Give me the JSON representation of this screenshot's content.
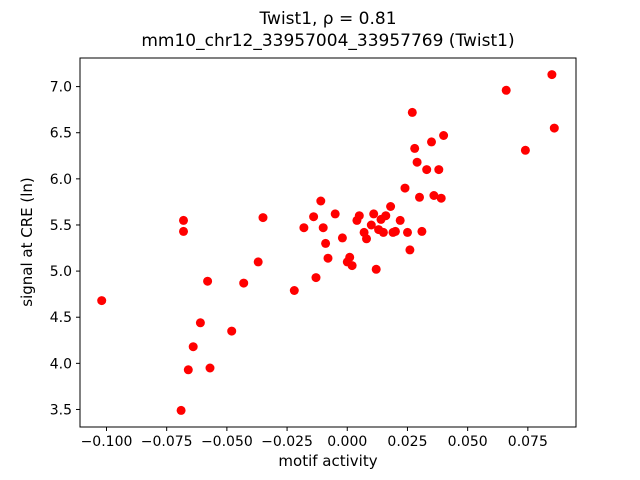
{
  "figure": {
    "background": "#ffffff",
    "frame_color": "#000000",
    "text_color": "#000000"
  },
  "chart_data": {
    "type": "scatter",
    "title": "Twist1, ρ = 0.81",
    "subtitle": "mm10_chr12_33957004_33957769 (Twist1)",
    "xlabel": "motif activity",
    "ylabel": "signal at CRE (ln)",
    "legend": "none",
    "grid": false,
    "marker_color": "#ff0000",
    "marker_radius": 4.5,
    "xlim": [
      -0.111,
      0.095
    ],
    "ylim": [
      3.31,
      7.31
    ],
    "x_tick_values": [
      -0.1,
      -0.075,
      -0.05,
      -0.025,
      0.0,
      0.025,
      0.05,
      0.075
    ],
    "x_tick_labels": [
      "−0.100",
      "−0.075",
      "−0.050",
      "−0.025",
      "0.000",
      "0.025",
      "0.050",
      "0.075"
    ],
    "y_tick_values": [
      3.5,
      4.0,
      4.5,
      5.0,
      5.5,
      6.0,
      6.5,
      7.0
    ],
    "y_tick_labels": [
      "3.5",
      "4.0",
      "4.5",
      "5.0",
      "5.5",
      "6.0",
      "6.5",
      "7.0"
    ],
    "points": [
      [
        -0.102,
        4.68
      ],
      [
        -0.068,
        5.55
      ],
      [
        -0.068,
        5.43
      ],
      [
        -0.069,
        3.49
      ],
      [
        -0.066,
        3.93
      ],
      [
        -0.064,
        4.18
      ],
      [
        -0.061,
        4.44
      ],
      [
        -0.058,
        4.89
      ],
      [
        -0.057,
        3.95
      ],
      [
        -0.048,
        4.35
      ],
      [
        -0.043,
        4.87
      ],
      [
        -0.037,
        5.1
      ],
      [
        -0.035,
        5.58
      ],
      [
        -0.022,
        4.79
      ],
      [
        -0.018,
        5.47
      ],
      [
        -0.014,
        5.59
      ],
      [
        -0.013,
        4.93
      ],
      [
        -0.011,
        5.76
      ],
      [
        -0.01,
        5.47
      ],
      [
        -0.009,
        5.3
      ],
      [
        -0.008,
        5.14
      ],
      [
        -0.005,
        5.62
      ],
      [
        -0.002,
        5.36
      ],
      [
        0.0,
        5.1
      ],
      [
        0.001,
        5.15
      ],
      [
        0.002,
        5.06
      ],
      [
        0.004,
        5.55
      ],
      [
        0.005,
        5.6
      ],
      [
        0.007,
        5.42
      ],
      [
        0.008,
        5.35
      ],
      [
        0.01,
        5.5
      ],
      [
        0.011,
        5.62
      ],
      [
        0.012,
        5.02
      ],
      [
        0.013,
        5.45
      ],
      [
        0.014,
        5.56
      ],
      [
        0.015,
        5.42
      ],
      [
        0.016,
        5.6
      ],
      [
        0.018,
        5.7
      ],
      [
        0.019,
        5.42
      ],
      [
        0.02,
        5.43
      ],
      [
        0.022,
        5.55
      ],
      [
        0.024,
        5.9
      ],
      [
        0.025,
        5.42
      ],
      [
        0.026,
        5.23
      ],
      [
        0.027,
        6.72
      ],
      [
        0.028,
        6.33
      ],
      [
        0.029,
        6.18
      ],
      [
        0.03,
        5.8
      ],
      [
        0.031,
        5.43
      ],
      [
        0.033,
        6.1
      ],
      [
        0.035,
        6.4
      ],
      [
        0.036,
        5.82
      ],
      [
        0.038,
        6.1
      ],
      [
        0.039,
        5.79
      ],
      [
        0.04,
        6.47
      ],
      [
        0.066,
        6.96
      ],
      [
        0.074,
        6.31
      ],
      [
        0.085,
        7.13
      ],
      [
        0.086,
        6.55
      ]
    ]
  }
}
